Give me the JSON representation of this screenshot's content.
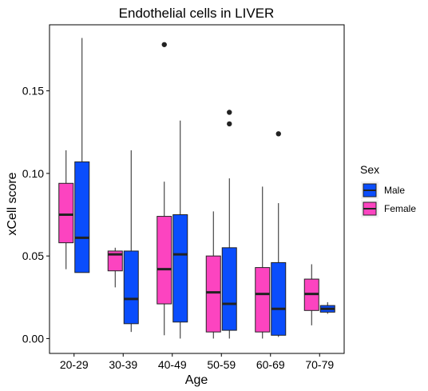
{
  "chart_data": {
    "type": "box",
    "title": "Endothelial cells in LIVER",
    "xlabel": "Age",
    "ylabel": "xCell score",
    "categories": [
      "20-29",
      "30-39",
      "40-49",
      "50-59",
      "60-69",
      "70-79"
    ],
    "yticks": [
      0.0,
      0.05,
      0.1,
      0.15
    ],
    "ytick_labels": [
      "0.00",
      "0.05",
      "0.10",
      "0.15"
    ],
    "ylim": [
      -0.009,
      0.19
    ],
    "grid": false,
    "legend_position": "right",
    "legend_title": "Sex",
    "series": [
      {
        "name": "Male",
        "color": "#0a4dfc",
        "boxes": [
          {
            "min": 0.04,
            "q1": 0.04,
            "median": 0.061,
            "q3": 0.107,
            "max": 0.182,
            "outliers": []
          },
          {
            "min": 0.004,
            "q1": 0.009,
            "median": 0.024,
            "q3": 0.053,
            "max": 0.114,
            "outliers": []
          },
          {
            "min": 0.0,
            "q1": 0.01,
            "median": 0.051,
            "q3": 0.075,
            "max": 0.132,
            "outliers": []
          },
          {
            "min": 0.0,
            "q1": 0.005,
            "median": 0.021,
            "q3": 0.055,
            "max": 0.097,
            "outliers": [
              0.137,
              0.13
            ]
          },
          {
            "min": 0.001,
            "q1": 0.002,
            "median": 0.018,
            "q3": 0.046,
            "max": 0.082,
            "outliers": [
              0.124
            ]
          },
          {
            "min": 0.015,
            "q1": 0.016,
            "median": 0.018,
            "q3": 0.02,
            "max": 0.022,
            "outliers": []
          }
        ]
      },
      {
        "name": "Female",
        "color": "#fc44c0",
        "boxes": [
          {
            "min": 0.042,
            "q1": 0.058,
            "median": 0.075,
            "q3": 0.094,
            "max": 0.114,
            "outliers": []
          },
          {
            "min": 0.031,
            "q1": 0.041,
            "median": 0.051,
            "q3": 0.053,
            "max": 0.055,
            "outliers": []
          },
          {
            "min": 0.002,
            "q1": 0.021,
            "median": 0.042,
            "q3": 0.074,
            "max": 0.095,
            "outliers": [
              0.178
            ]
          },
          {
            "min": 0.0,
            "q1": 0.004,
            "median": 0.028,
            "q3": 0.05,
            "max": 0.077,
            "outliers": []
          },
          {
            "min": 0.0,
            "q1": 0.004,
            "median": 0.027,
            "q3": 0.043,
            "max": 0.092,
            "outliers": []
          },
          {
            "min": 0.008,
            "q1": 0.017,
            "median": 0.027,
            "q3": 0.036,
            "max": 0.045,
            "outliers": []
          }
        ]
      }
    ]
  }
}
